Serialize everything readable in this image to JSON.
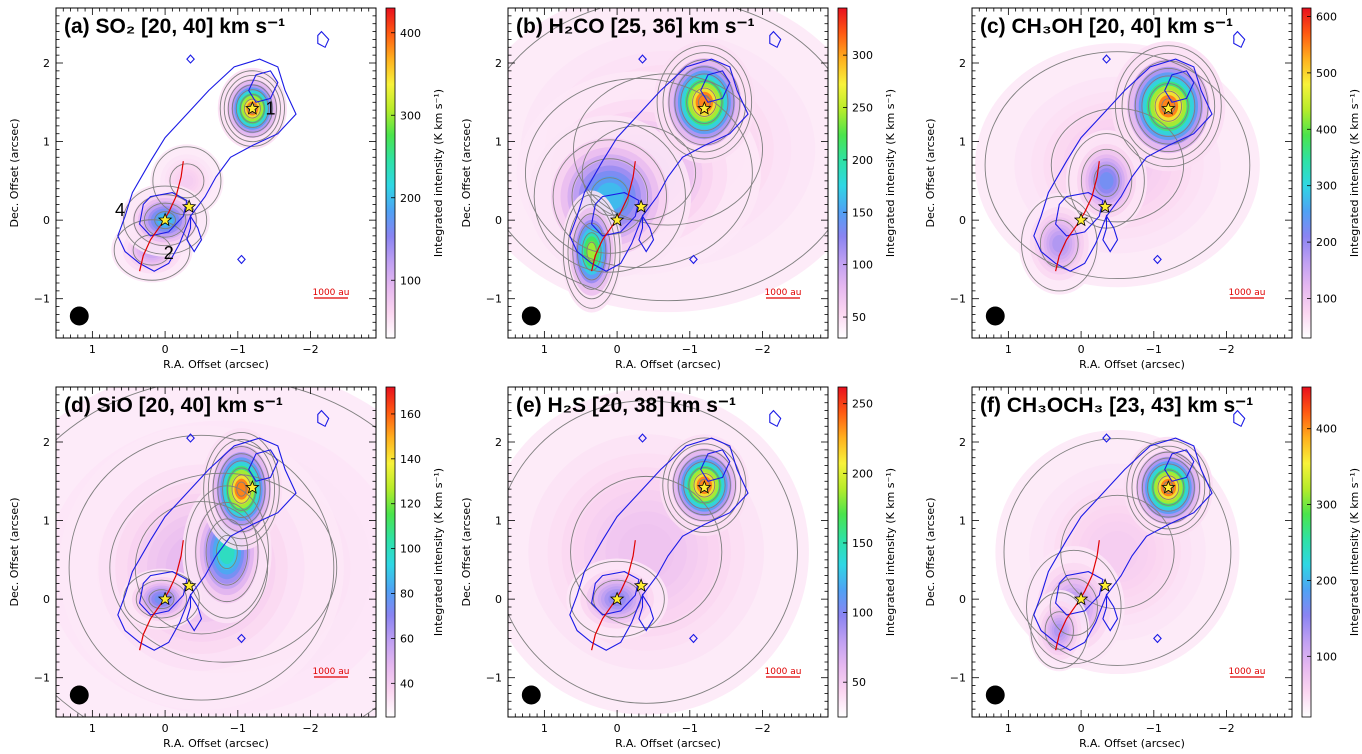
{
  "figure": {
    "colormap": [
      "#ffffff",
      "#fbd6f1",
      "#e6b8f0",
      "#bf9ff2",
      "#8a84f2",
      "#4fa2f4",
      "#2fd7e4",
      "#2fe2a5",
      "#4be44c",
      "#b7ec2a",
      "#f8f23a",
      "#ffb01e",
      "#ff5a12",
      "#e8101e"
    ],
    "colors": {
      "grey_contour": "#7f7f7f",
      "blue_contour": "#1a1ae6",
      "outflow": "#e00000",
      "star": "#ffee33",
      "beam": "#000000"
    },
    "panels": [
      {
        "id": "a",
        "title": "(a) SO₂ [20, 40] km s⁻¹",
        "xlabel": "R.A. Offset (arcsec)",
        "ylabel": "Dec. Offset (arcsec)",
        "cbar_label": "Integrated intensity (K km s⁻¹)",
        "xticks": [
          {
            "v": 1,
            "t": "1"
          },
          {
            "v": 0,
            "t": "0"
          },
          {
            "v": -1,
            "t": "−1"
          },
          {
            "v": -2,
            "t": "−2"
          }
        ],
        "yticks": [
          {
            "v": -1,
            "t": "−1"
          },
          {
            "v": 0,
            "t": "0"
          },
          {
            "v": 1,
            "t": "1"
          },
          {
            "v": 2,
            "t": "2"
          }
        ],
        "xlim": [
          1.5,
          -2.9
        ],
        "ylim": [
          -1.5,
          2.7
        ],
        "cbar_range": [
          30,
          430
        ],
        "cbar_ticks": [
          100,
          200,
          300,
          400
        ],
        "scalebar": "1000 au",
        "source_labels": [
          {
            "t": "1",
            "x": -1.45,
            "y": 1.42
          },
          {
            "t": "2",
            "x": -0.05,
            "y": -0.42
          },
          {
            "t": "4",
            "x": 0.62,
            "y": 0.13
          }
        ],
        "blobs": [
          {
            "x": -1.2,
            "y": 1.42,
            "sx": 0.17,
            "sy": 0.2,
            "a": 1.0
          },
          {
            "x": 0.0,
            "y": 0.0,
            "sx": 0.22,
            "sy": 0.18,
            "a": 0.45
          },
          {
            "x": 0.18,
            "y": -0.38,
            "sx": 0.2,
            "sy": 0.16,
            "a": 0.22
          },
          {
            "x": -0.3,
            "y": 0.5,
            "sx": 0.18,
            "sy": 0.18,
            "a": 0.07
          }
        ]
      },
      {
        "id": "b",
        "title": "(b) H₂CO [25, 36] km s⁻¹",
        "xlabel": "R.A. Offset (arcsec)",
        "ylabel": "Dec. Offset (arcsec)",
        "cbar_label": "Integrated intensity (K km s⁻¹)",
        "xticks": [
          {
            "v": 1,
            "t": "1"
          },
          {
            "v": 0,
            "t": "0"
          },
          {
            "v": -1,
            "t": "−1"
          },
          {
            "v": -2,
            "t": "−2"
          }
        ],
        "yticks": [
          {
            "v": -1,
            "t": "−1"
          },
          {
            "v": 0,
            "t": "0"
          },
          {
            "v": 1,
            "t": "1"
          },
          {
            "v": 2,
            "t": "2"
          }
        ],
        "xlim": [
          1.5,
          -2.9
        ],
        "ylim": [
          -1.5,
          2.7
        ],
        "cbar_range": [
          30,
          345
        ],
        "cbar_ticks": [
          50,
          100,
          150,
          200,
          250,
          300
        ],
        "scalebar": "1000 au",
        "source_labels": [],
        "blobs": [
          {
            "x": -1.2,
            "y": 1.5,
            "sx": 0.25,
            "sy": 0.3,
            "a": 1.0
          },
          {
            "x": 0.35,
            "y": -0.4,
            "sx": 0.15,
            "sy": 0.3,
            "a": 0.75
          },
          {
            "x": 0.1,
            "y": 0.3,
            "sx": 0.4,
            "sy": 0.4,
            "a": 0.45
          },
          {
            "x": -0.3,
            "y": 0.6,
            "sx": 0.6,
            "sy": 0.5,
            "a": 0.2
          },
          {
            "x": -0.7,
            "y": 0.9,
            "sx": 1.0,
            "sy": 0.8,
            "a": 0.07
          }
        ]
      },
      {
        "id": "c",
        "title": "(c) CH₃OH [20, 40] km s⁻¹",
        "xlabel": "R.A. Offset (arcsec)",
        "ylabel": "Dec. Offset (arcsec)",
        "cbar_label": "Integrated intensity (K km s⁻¹)",
        "xticks": [
          {
            "v": 1,
            "t": "1"
          },
          {
            "v": 0,
            "t": "0"
          },
          {
            "v": -1,
            "t": "−1"
          },
          {
            "v": -2,
            "t": "−2"
          }
        ],
        "yticks": [
          {
            "v": -1,
            "t": "−1"
          },
          {
            "v": 0,
            "t": "0"
          },
          {
            "v": 1,
            "t": "1"
          },
          {
            "v": 2,
            "t": "2"
          }
        ],
        "xlim": [
          1.5,
          -2.9
        ],
        "ylim": [
          -1.5,
          2.7
        ],
        "cbar_range": [
          30,
          615
        ],
        "cbar_ticks": [
          100,
          200,
          300,
          400,
          500,
          600
        ],
        "scalebar": "1000 au",
        "source_labels": [],
        "blobs": [
          {
            "x": -1.2,
            "y": 1.45,
            "sx": 0.28,
            "sy": 0.32,
            "a": 1.0
          },
          {
            "x": -0.35,
            "y": 0.5,
            "sx": 0.2,
            "sy": 0.25,
            "a": 0.35
          },
          {
            "x": 0.3,
            "y": -0.3,
            "sx": 0.2,
            "sy": 0.25,
            "a": 0.25
          },
          {
            "x": -0.5,
            "y": 0.7,
            "sx": 0.7,
            "sy": 0.6,
            "a": 0.08
          }
        ]
      },
      {
        "id": "d",
        "title": "(d) SiO [20, 40] km s⁻¹",
        "xlabel": "R.A. Offset (arcsec)",
        "ylabel": "Dec. Offset (arcsec)",
        "cbar_label": "Integrated intensity (K km s⁻¹)",
        "xticks": [
          {
            "v": 1,
            "t": "1"
          },
          {
            "v": 0,
            "t": "0"
          },
          {
            "v": -1,
            "t": "−1"
          },
          {
            "v": -2,
            "t": "−2"
          }
        ],
        "yticks": [
          {
            "v": -1,
            "t": "−1"
          },
          {
            "v": 0,
            "t": "0"
          },
          {
            "v": 1,
            "t": "1"
          },
          {
            "v": 2,
            "t": "2"
          }
        ],
        "xlim": [
          1.5,
          -2.9
        ],
        "ylim": [
          -1.5,
          2.7
        ],
        "cbar_range": [
          25,
          172
        ],
        "cbar_ticks": [
          40,
          60,
          80,
          100,
          120,
          140,
          160
        ],
        "scalebar": "1000 au",
        "source_labels": [],
        "blobs": [
          {
            "x": -1.05,
            "y": 1.4,
            "sx": 0.2,
            "sy": 0.3,
            "a": 1.0
          },
          {
            "x": -0.85,
            "y": 0.6,
            "sx": 0.22,
            "sy": 0.35,
            "a": 0.55
          },
          {
            "x": 0.05,
            "y": 0.0,
            "sx": 0.2,
            "sy": 0.15,
            "a": 0.35
          },
          {
            "x": -0.5,
            "y": 0.4,
            "sx": 0.7,
            "sy": 0.7,
            "a": 0.14
          },
          {
            "x": -0.8,
            "y": 0.4,
            "sx": 1.2,
            "sy": 1.0,
            "a": 0.05
          }
        ]
      },
      {
        "id": "e",
        "title": "(e) H₂S [20, 38] km s⁻¹",
        "xlabel": "R.A. Offset (arcsec)",
        "ylabel": "Dec. Offset (arcsec)",
        "cbar_label": "Integrated intensity (K km s⁻¹)",
        "xticks": [
          {
            "v": 1,
            "t": "1"
          },
          {
            "v": 0,
            "t": "0"
          },
          {
            "v": -1,
            "t": "−1"
          },
          {
            "v": -2,
            "t": "−2"
          }
        ],
        "yticks": [
          {
            "v": -1,
            "t": "−1"
          },
          {
            "v": 0,
            "t": "0"
          },
          {
            "v": 1,
            "t": "1"
          },
          {
            "v": 2,
            "t": "2"
          }
        ],
        "xlim": [
          1.5,
          -2.9
        ],
        "ylim": [
          -1.5,
          2.7
        ],
        "cbar_range": [
          25,
          262
        ],
        "cbar_ticks": [
          50,
          100,
          150,
          200,
          250
        ],
        "scalebar": "1000 au",
        "source_labels": [],
        "blobs": [
          {
            "x": -1.2,
            "y": 1.45,
            "sx": 0.22,
            "sy": 0.25,
            "a": 1.0
          },
          {
            "x": 0.0,
            "y": 0.0,
            "sx": 0.25,
            "sy": 0.2,
            "a": 0.3
          },
          {
            "x": -0.4,
            "y": 0.6,
            "sx": 0.8,
            "sy": 0.8,
            "a": 0.1
          }
        ]
      },
      {
        "id": "f",
        "title": "(f) CH₃OCH₃ [23, 43] km s⁻¹",
        "xlabel": "R.A. Offset (arcsec)",
        "ylabel": "Dec. Offset (arcsec)",
        "cbar_label": "Integrated intensity (K km s⁻¹)",
        "xticks": [
          {
            "v": 1,
            "t": "1"
          },
          {
            "v": 0,
            "t": "0"
          },
          {
            "v": -1,
            "t": "−1"
          },
          {
            "v": -2,
            "t": "−2"
          }
        ],
        "yticks": [
          {
            "v": -1,
            "t": "−1"
          },
          {
            "v": 0,
            "t": "0"
          },
          {
            "v": 1,
            "t": "1"
          },
          {
            "v": 2,
            "t": "2"
          }
        ],
        "xlim": [
          1.5,
          -2.9
        ],
        "ylim": [
          -1.5,
          2.7
        ],
        "cbar_range": [
          20,
          455
        ],
        "cbar_ticks": [
          100,
          200,
          300,
          400
        ],
        "scalebar": "1000 au",
        "source_labels": [],
        "blobs": [
          {
            "x": -1.2,
            "y": 1.42,
            "sx": 0.22,
            "sy": 0.25,
            "a": 1.0
          },
          {
            "x": 0.1,
            "y": -0.1,
            "sx": 0.25,
            "sy": 0.3,
            "a": 0.25
          },
          {
            "x": 0.3,
            "y": -0.4,
            "sx": 0.15,
            "sy": 0.2,
            "a": 0.25
          },
          {
            "x": -0.5,
            "y": 0.6,
            "sx": 0.6,
            "sy": 0.6,
            "a": 0.07
          }
        ]
      }
    ],
    "common": {
      "stars": [
        {
          "x": 0.0,
          "y": 0.0
        },
        {
          "x": -0.33,
          "y": 0.17
        },
        {
          "x": -1.2,
          "y": 1.42
        }
      ],
      "outflow": [
        [
          0.35,
          -0.65
        ],
        [
          0.3,
          -0.45
        ],
        [
          0.2,
          -0.25
        ],
        [
          0.05,
          -0.05
        ],
        [
          -0.05,
          0.1
        ],
        [
          -0.15,
          0.3
        ],
        [
          -0.22,
          0.55
        ],
        [
          -0.25,
          0.75
        ]
      ],
      "beam": {
        "x": 1.18,
        "y": -1.22,
        "r": 0.13
      },
      "blue_contours": [
        [
          [
            0.65,
            -0.2
          ],
          [
            0.55,
            0.05
          ],
          [
            0.45,
            0.35
          ],
          [
            0.2,
            0.75
          ],
          [
            0.0,
            1.05
          ],
          [
            -0.3,
            1.35
          ],
          [
            -0.6,
            1.65
          ],
          [
            -0.95,
            1.95
          ],
          [
            -1.3,
            2.05
          ],
          [
            -1.55,
            1.95
          ],
          [
            -1.65,
            1.65
          ],
          [
            -1.8,
            1.35
          ],
          [
            -1.55,
            1.1
          ],
          [
            -1.2,
            0.95
          ],
          [
            -0.9,
            0.8
          ],
          [
            -0.7,
            0.55
          ],
          [
            -0.55,
            0.3
          ],
          [
            -0.35,
            0.05
          ],
          [
            -0.2,
            -0.3
          ],
          [
            -0.05,
            -0.55
          ],
          [
            0.15,
            -0.65
          ],
          [
            0.35,
            -0.55
          ],
          [
            0.55,
            -0.4
          ]
        ],
        [
          [
            0.3,
            0.2
          ],
          [
            0.2,
            0.3
          ],
          [
            -0.1,
            0.35
          ],
          [
            -0.3,
            0.25
          ],
          [
            -0.25,
            0.05
          ],
          [
            -0.05,
            -0.15
          ],
          [
            0.2,
            -0.2
          ],
          [
            0.35,
            -0.05
          ]
        ],
        [
          [
            -0.35,
            0.05
          ],
          [
            -0.45,
            -0.1
          ],
          [
            -0.5,
            -0.25
          ],
          [
            -0.4,
            -0.4
          ],
          [
            -0.3,
            -0.25
          ],
          [
            -0.35,
            -0.1
          ]
        ],
        [
          [
            -1.45,
            1.9
          ],
          [
            -1.55,
            1.75
          ],
          [
            -1.45,
            1.55
          ],
          [
            -1.25,
            1.5
          ],
          [
            -1.15,
            1.65
          ],
          [
            -1.25,
            1.85
          ]
        ],
        [
          [
            -2.15,
            2.4
          ],
          [
            -2.25,
            2.3
          ],
          [
            -2.2,
            2.2
          ],
          [
            -2.1,
            2.25
          ],
          [
            -2.1,
            2.35
          ]
        ],
        [
          [
            -0.35,
            2.1
          ],
          [
            -0.4,
            2.05
          ],
          [
            -0.35,
            2.0
          ],
          [
            -0.3,
            2.05
          ]
        ],
        [
          [
            -1.05,
            -0.45
          ],
          [
            -1.1,
            -0.5
          ],
          [
            -1.05,
            -0.55
          ],
          [
            -1.0,
            -0.5
          ]
        ]
      ]
    }
  }
}
